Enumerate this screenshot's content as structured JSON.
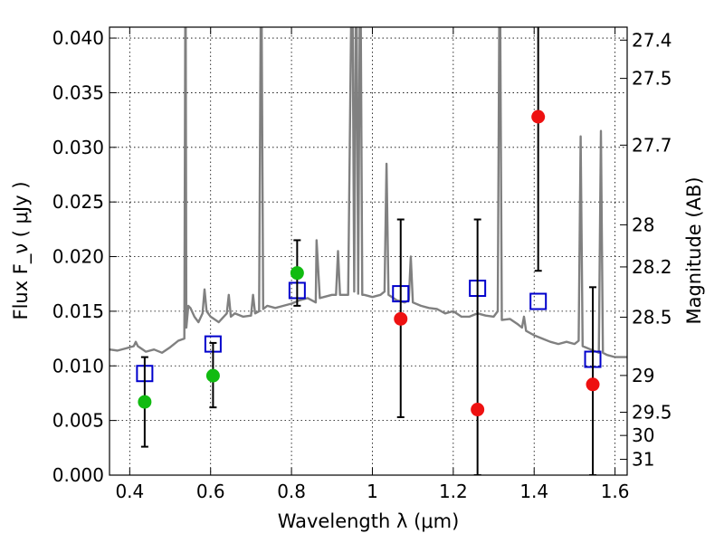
{
  "chart_data": {
    "type": "scatter",
    "xlabel": "Wavelength  λ (μm)",
    "ylabel": "Flux  F_ν  ( μJy )",
    "ylabel_right": "Magnitude (AB)",
    "xlim": [
      0.35,
      1.63
    ],
    "ylim": [
      0.0,
      0.041
    ],
    "grid": true,
    "x_ticks": [
      0.4,
      0.6,
      0.8,
      1.0,
      1.2,
      1.4,
      1.6
    ],
    "x_tick_labels": [
      "0.4",
      "0.6",
      "0.8",
      "1",
      "1.2",
      "1.4",
      "1.6"
    ],
    "y_ticks": [
      0.0,
      0.005,
      0.01,
      0.015,
      0.02,
      0.025,
      0.03,
      0.035,
      0.04
    ],
    "y_tick_labels": [
      "0.000",
      "0.005",
      "0.010",
      "0.015",
      "0.020",
      "0.025",
      "0.030",
      "0.035",
      "0.040"
    ],
    "right_ticks": [
      {
        "label": "27.4",
        "mag": 27.4
      },
      {
        "label": "27.5",
        "mag": 27.5
      },
      {
        "label": "27.7",
        "mag": 27.7
      },
      {
        "label": "28",
        "mag": 28.0
      },
      {
        "label": "28.2",
        "mag": 28.2
      },
      {
        "label": "28.5",
        "mag": 28.5
      },
      {
        "label": "29",
        "mag": 29.0
      },
      {
        "label": "29.5",
        "mag": 29.5
      },
      {
        "label": "30",
        "mag": 30.0
      },
      {
        "label": "31",
        "mag": 31.0
      }
    ],
    "model_spectrum": {
      "color": "#808080",
      "x": [
        0.35,
        0.37,
        0.39,
        0.41,
        0.415,
        0.42,
        0.44,
        0.46,
        0.48,
        0.5,
        0.52,
        0.535,
        0.538,
        0.54,
        0.545,
        0.55,
        0.56,
        0.57,
        0.58,
        0.585,
        0.59,
        0.6,
        0.62,
        0.64,
        0.645,
        0.65,
        0.66,
        0.68,
        0.7,
        0.705,
        0.71,
        0.72,
        0.725,
        0.73,
        0.74,
        0.76,
        0.78,
        0.8,
        0.82,
        0.84,
        0.86,
        0.862,
        0.87,
        0.88,
        0.9,
        0.91,
        0.915,
        0.92,
        0.94,
        0.95,
        0.955,
        0.96,
        0.965,
        0.97,
        0.975,
        0.98,
        1.0,
        1.02,
        1.03,
        1.035,
        1.04,
        1.06,
        1.08,
        1.09,
        1.095,
        1.1,
        1.12,
        1.14,
        1.16,
        1.18,
        1.2,
        1.22,
        1.24,
        1.26,
        1.28,
        1.3,
        1.31,
        1.315,
        1.32,
        1.34,
        1.36,
        1.37,
        1.375,
        1.38,
        1.4,
        1.42,
        1.44,
        1.46,
        1.48,
        1.5,
        1.51,
        1.515,
        1.52,
        1.54,
        1.56,
        1.565,
        1.57,
        1.58,
        1.6,
        1.63
      ],
      "y": [
        0.0115,
        0.0114,
        0.0116,
        0.0118,
        0.0122,
        0.0118,
        0.0113,
        0.0115,
        0.0112,
        0.0117,
        0.0123,
        0.0125,
        0.05,
        0.0135,
        0.0155,
        0.0153,
        0.0145,
        0.014,
        0.0148,
        0.017,
        0.015,
        0.0145,
        0.014,
        0.0148,
        0.0165,
        0.0145,
        0.0148,
        0.0145,
        0.0146,
        0.0165,
        0.0148,
        0.015,
        0.05,
        0.0152,
        0.0155,
        0.0153,
        0.0155,
        0.0157,
        0.016,
        0.0162,
        0.0158,
        0.0215,
        0.0162,
        0.0163,
        0.0165,
        0.0165,
        0.0205,
        0.0165,
        0.0165,
        0.05,
        0.0168,
        0.05,
        0.0166,
        0.05,
        0.0165,
        0.0165,
        0.0163,
        0.0165,
        0.0168,
        0.0285,
        0.0165,
        0.016,
        0.0158,
        0.016,
        0.02,
        0.0158,
        0.0155,
        0.0153,
        0.0152,
        0.0148,
        0.015,
        0.0145,
        0.0145,
        0.0148,
        0.0146,
        0.0145,
        0.015,
        0.05,
        0.0142,
        0.0143,
        0.0138,
        0.0135,
        0.0145,
        0.0132,
        0.0128,
        0.0125,
        0.0122,
        0.012,
        0.0122,
        0.012,
        0.0123,
        0.031,
        0.0118,
        0.0115,
        0.0112,
        0.0315,
        0.0112,
        0.011,
        0.0108,
        0.0108
      ]
    },
    "series": [
      {
        "marker": "open-square",
        "color": "#0000cc",
        "points": [
          {
            "x": 0.437,
            "y": 0.0093
          },
          {
            "x": 0.606,
            "y": 0.012
          },
          {
            "x": 0.814,
            "y": 0.0169
          },
          {
            "x": 1.07,
            "y": 0.0166
          },
          {
            "x": 1.26,
            "y": 0.0171
          },
          {
            "x": 1.41,
            "y": 0.0159
          },
          {
            "x": 1.545,
            "y": 0.0106
          }
        ]
      },
      {
        "marker": "filled-circle",
        "color": "#11bb11",
        "points": [
          {
            "x": 0.437,
            "y": 0.0067,
            "ylo": 0.0026,
            "yhi": 0.0108
          },
          {
            "x": 0.606,
            "y": 0.0091,
            "ylo": 0.0062,
            "yhi": 0.0121
          },
          {
            "x": 0.814,
            "y": 0.0185,
            "ylo": 0.0155,
            "yhi": 0.0215
          }
        ]
      },
      {
        "marker": "filled-circle",
        "color": "#ee1111",
        "points": [
          {
            "x": 1.07,
            "y": 0.0143,
            "ylo": 0.0053,
            "yhi": 0.0234
          },
          {
            "x": 1.26,
            "y": 0.006,
            "ylo": 0.0,
            "yhi": 0.0234
          },
          {
            "x": 1.41,
            "y": 0.0328,
            "ylo": 0.0187,
            "yhi": 0.05
          },
          {
            "x": 1.545,
            "y": 0.0083,
            "ylo": 0.0,
            "yhi": 0.0172
          }
        ]
      }
    ]
  }
}
